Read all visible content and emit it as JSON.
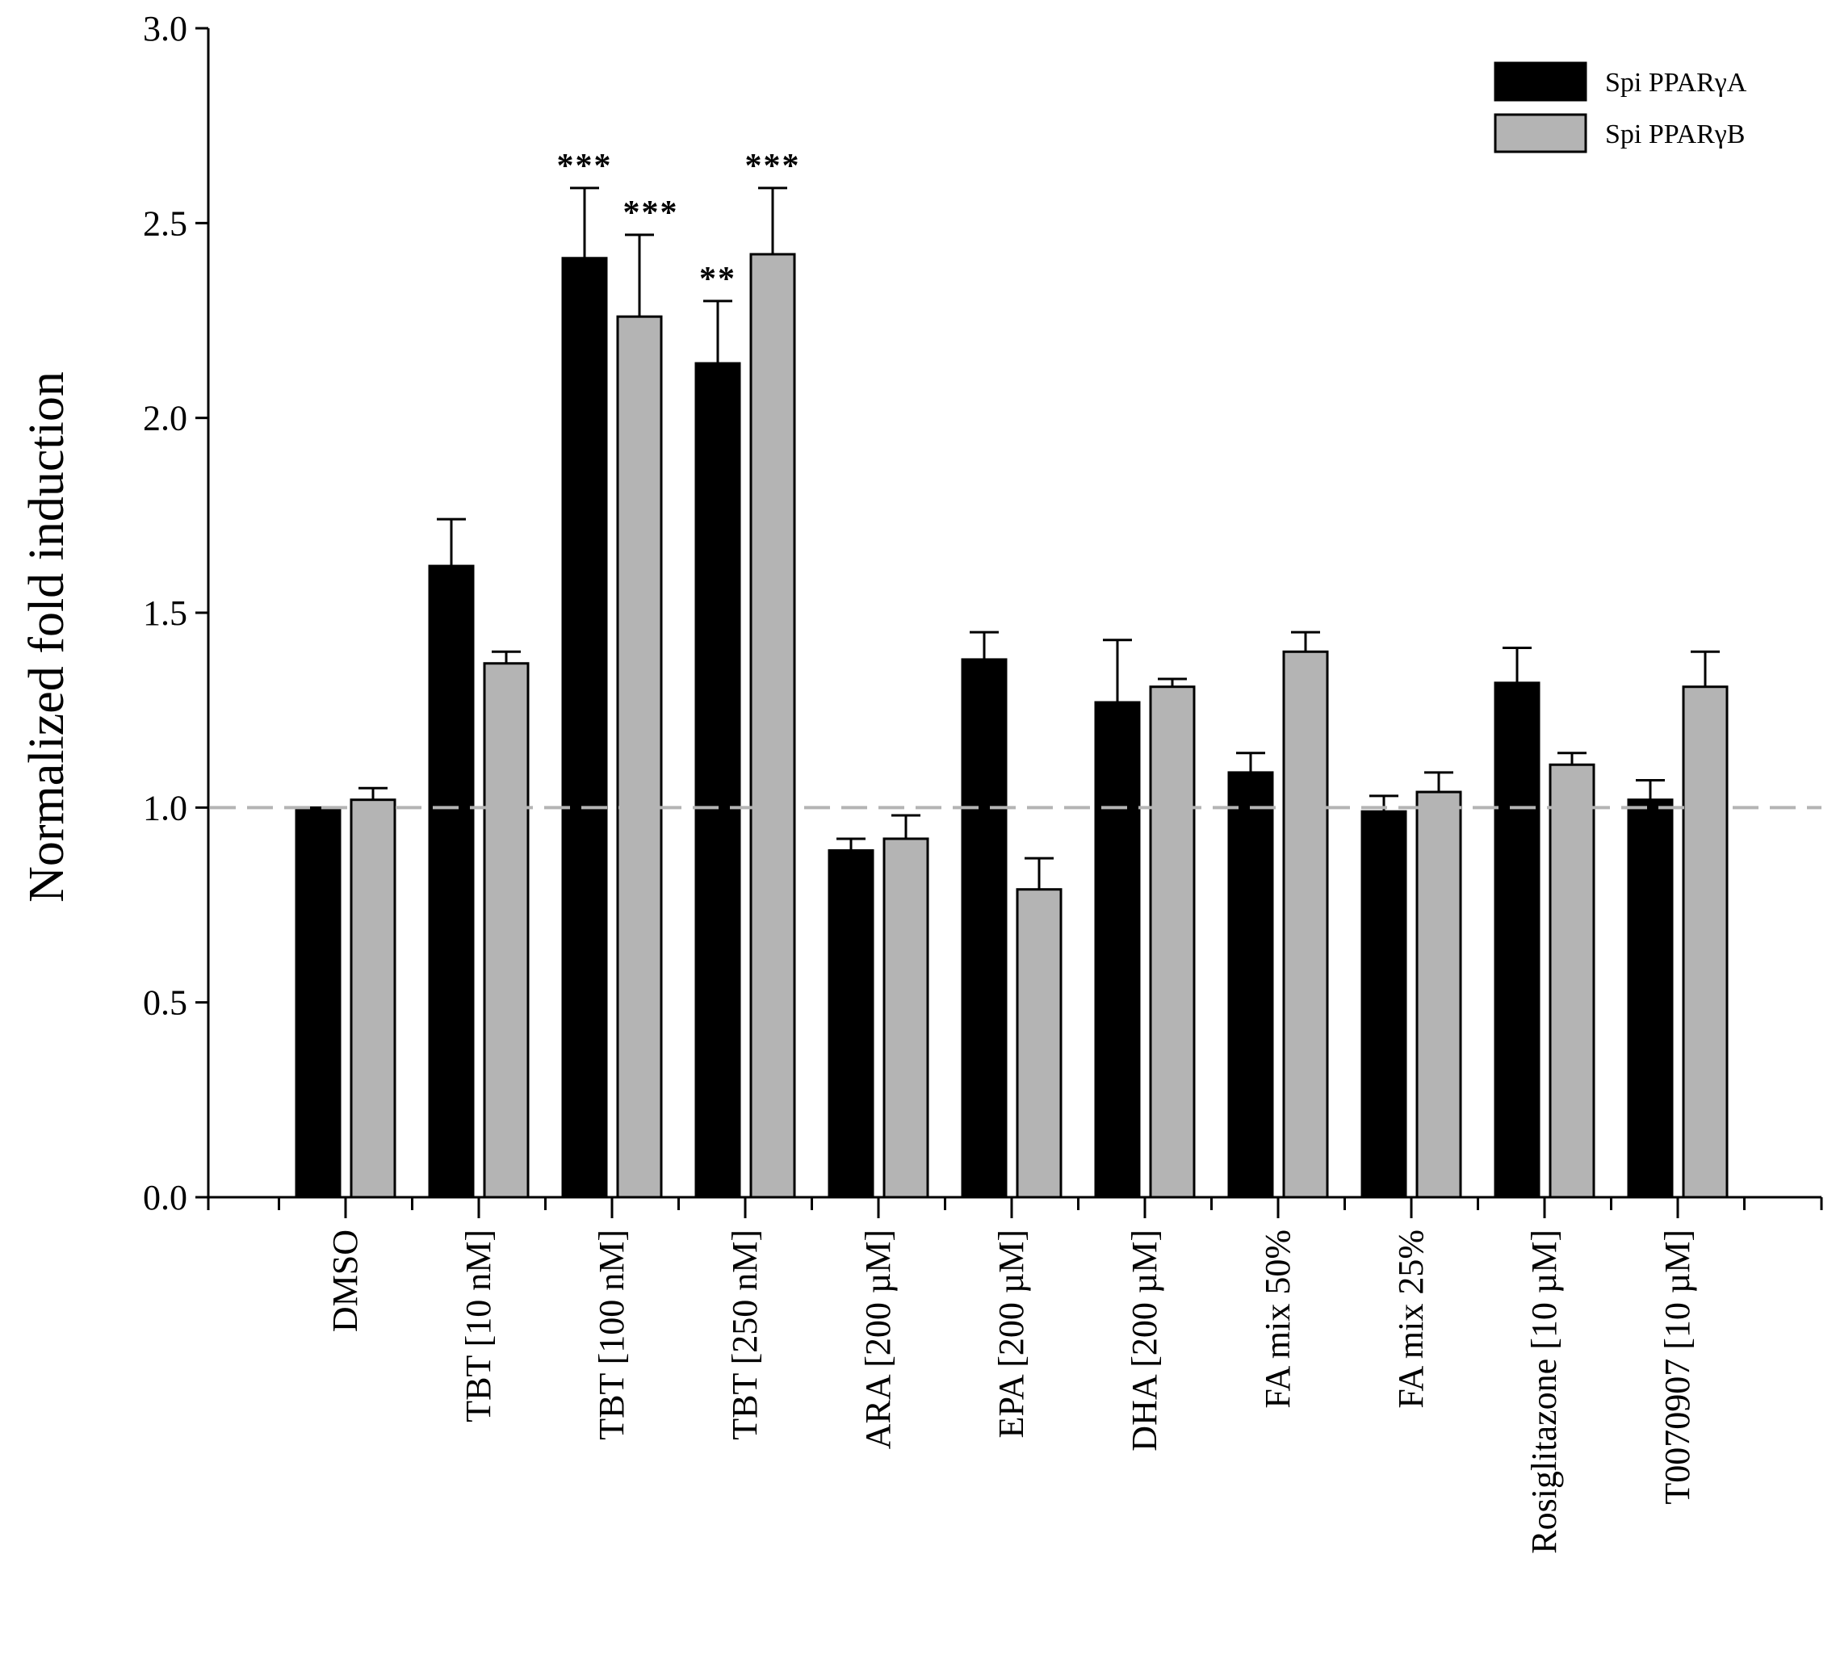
{
  "chart_data": {
    "type": "bar",
    "title": "",
    "xlabel": "",
    "ylabel": "Normalized fold induction",
    "ylim": [
      0.0,
      3.0
    ],
    "yticks": [
      "0.0",
      "0.5",
      "1.0",
      "1.5",
      "2.0",
      "2.5",
      "3.0"
    ],
    "ytick_values": [
      0.0,
      0.5,
      1.0,
      1.5,
      2.0,
      2.5,
      3.0
    ],
    "grid": false,
    "legend_position": "top-right",
    "reference_line": 1.0,
    "categories": [
      "DMSO",
      "TBT [10 nM]",
      "TBT [100 nM]",
      "TBT [250 nM]",
      "ARA [200 µM]",
      "EPA [200 µM]",
      "DHA [200 µM]",
      "FA mix 50%",
      "FA mix 25%",
      "Rosiglitazone [10 µM]",
      "T0070907 [10 µM]"
    ],
    "series": [
      {
        "name": "Spi PPARγA",
        "color": "#000000",
        "values": [
          1.0,
          1.62,
          2.41,
          2.14,
          0.89,
          1.38,
          1.27,
          1.09,
          0.99,
          1.32,
          1.02
        ],
        "errors": [
          0.0,
          0.12,
          0.18,
          0.16,
          0.03,
          0.07,
          0.16,
          0.05,
          0.04,
          0.09,
          0.05
        ],
        "significance": [
          "",
          "",
          "***",
          "**",
          "",
          "",
          "",
          "",
          "",
          "",
          ""
        ]
      },
      {
        "name": "Spi PPARγB",
        "color": "#b4b4b4",
        "values": [
          1.02,
          1.37,
          2.26,
          2.42,
          0.92,
          0.79,
          1.31,
          1.4,
          1.04,
          1.11,
          1.31
        ],
        "errors": [
          0.03,
          0.03,
          0.21,
          0.17,
          0.06,
          0.08,
          0.02,
          0.05,
          0.05,
          0.03,
          0.09
        ],
        "significance": [
          "",
          "",
          "***",
          "***",
          "",
          "",
          "",
          "",
          "",
          "",
          ""
        ]
      }
    ]
  }
}
